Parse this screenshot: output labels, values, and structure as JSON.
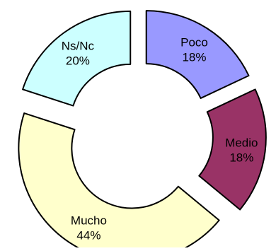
{
  "chart_data": {
    "type": "pie",
    "variant": "exploded-donut",
    "title": "",
    "slices": [
      {
        "key": "poco",
        "label": "Poco",
        "value": 18,
        "value_label": "18%",
        "color": "#9999ff"
      },
      {
        "key": "medio",
        "label": "Medio",
        "value": 18,
        "value_label": "18%",
        "color": "#993366"
      },
      {
        "key": "mucho",
        "label": "Mucho",
        "value": 44,
        "value_label": "44%",
        "color": "#ffffcc"
      },
      {
        "key": "nsnc",
        "label": "Ns/Nc",
        "value": 20,
        "value_label": "20%",
        "color": "#ccffff"
      }
    ]
  }
}
